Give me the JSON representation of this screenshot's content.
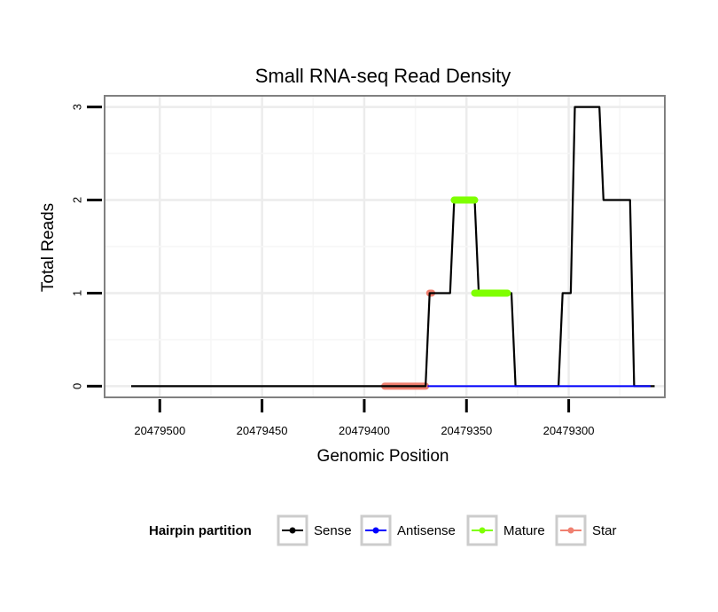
{
  "chart_data": {
    "type": "line",
    "title": "Small RNA-seq Read Density",
    "xlabel": "Genomic Position",
    "ylabel": "Total Reads",
    "x_reversed": true,
    "xlim": [
      20479527,
      20479253
    ],
    "ylim": [
      -0.12,
      3.12
    ],
    "x_ticks": [
      20479500,
      20479450,
      20479400,
      20479350,
      20479300
    ],
    "x_tick_labels": [
      "20479500",
      "20479450",
      "20479400",
      "20479350",
      "20479300"
    ],
    "y_ticks": [
      0,
      1,
      2,
      3
    ],
    "y_tick_labels": [
      "0",
      "1",
      "2",
      "3"
    ],
    "grid": true,
    "legend": {
      "title": "Hairpin partition",
      "placement": "bottom",
      "entries": [
        {
          "name": "Sense",
          "color": "#000000"
        },
        {
          "name": "Antisense",
          "color": "#0000ff"
        },
        {
          "name": "Mature",
          "color": "#7fff00"
        },
        {
          "name": "Star",
          "color": "#f08070"
        }
      ]
    },
    "series": [
      {
        "name": "Sense",
        "color": "#000000",
        "x": [
          20479514,
          20479370,
          20479368,
          20479358,
          20479356,
          20479346,
          20479344,
          20479328,
          20479326,
          20479305,
          20479303,
          20479299,
          20479297,
          20479285,
          20479283,
          20479270,
          20479268,
          20479258
        ],
        "y": [
          0,
          0,
          1,
          1,
          2,
          2,
          1,
          1,
          0,
          0,
          1,
          1,
          3,
          3,
          2,
          2,
          0,
          0
        ]
      },
      {
        "name": "Antisense",
        "color": "#0000ff",
        "x": [
          20479369,
          20479260
        ],
        "y": [
          0,
          0
        ]
      },
      {
        "name": "Mature",
        "color": "#7fff00",
        "segments": [
          {
            "x": [
              20479356,
              20479346
            ],
            "y": 2
          },
          {
            "x": [
              20479346,
              20479330
            ],
            "y": 1
          }
        ]
      },
      {
        "name": "Star",
        "color": "#f08070",
        "segments": [
          {
            "x": [
              20479390,
              20479370
            ],
            "y": 0
          },
          {
            "x": [
              20479368,
              20479367
            ],
            "y": 1
          }
        ]
      }
    ]
  }
}
